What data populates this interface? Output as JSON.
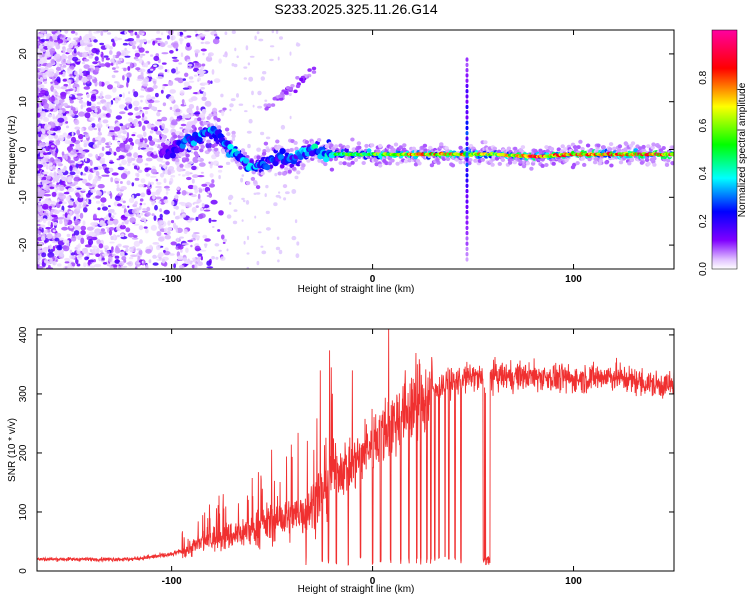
{
  "title": "S233.2025.325.11.26.G14",
  "chart_data": [
    {
      "type": "heatmap",
      "title": "S233.2025.325.11.26.G14",
      "xlabel": "Height of straight line (km)",
      "ylabel": "Frequency (Hz)",
      "xlim": [
        -167,
        150
      ],
      "ylim": [
        -25,
        25
      ],
      "xticks": [
        -100,
        0,
        100
      ],
      "yticks": [
        -20,
        -10,
        0,
        10,
        20
      ],
      "xtick_labels": [
        "-100",
        "0",
        "100"
      ],
      "ytick_labels": [
        "-20",
        "-10",
        "0",
        "10",
        "20"
      ],
      "colorbar": {
        "label": "Normalized spectral amplitude",
        "range": [
          0,
          1
        ],
        "ticks": [
          0.0,
          0.2,
          0.4,
          0.6,
          0.8
        ],
        "tick_labels": [
          "0.0",
          "0.2",
          "0.4",
          "0.6",
          "0.8"
        ],
        "colors": [
          "#ffffff",
          "#8000ff",
          "#0000ff",
          "#00ffff",
          "#00ff00",
          "#ffff00",
          "#ff0000",
          "#ff00a0"
        ]
      },
      "ridge": {
        "frequency_hz": [
          [
            -100,
            0
          ],
          [
            -90,
            2
          ],
          [
            -80,
            4
          ],
          [
            -70,
            0
          ],
          [
            -60,
            -4
          ],
          [
            -50,
            -2
          ],
          [
            -40,
            -2
          ],
          [
            -30,
            0
          ],
          [
            -20,
            -1
          ],
          [
            -10,
            -1
          ],
          [
            0,
            -1
          ],
          [
            20,
            -1
          ],
          [
            40,
            -1
          ],
          [
            60,
            -1
          ],
          [
            80,
            -1.5
          ],
          [
            100,
            -1
          ],
          [
            120,
            -1
          ],
          [
            140,
            -1
          ],
          [
            150,
            -1
          ]
        ],
        "peak_amplitude": [
          [
            -100,
            0.3
          ],
          [
            -80,
            0.5
          ],
          [
            -60,
            0.45
          ],
          [
            -40,
            0.4
          ],
          [
            -20,
            0.55
          ],
          [
            0,
            0.6
          ],
          [
            20,
            0.8
          ],
          [
            40,
            0.85
          ],
          [
            60,
            0.7
          ],
          [
            80,
            0.9
          ],
          [
            100,
            0.85
          ],
          [
            120,
            0.85
          ],
          [
            150,
            0.9
          ]
        ],
        "vertical_feature_km": 47
      }
    },
    {
      "type": "line",
      "xlabel": "Height of straight line (km)",
      "ylabel": "SNR (10 * v/v)",
      "xlim": [
        -167,
        150
      ],
      "ylim": [
        0,
        410
      ],
      "xticks": [
        -100,
        0,
        100
      ],
      "yticks": [
        0,
        100,
        200,
        300,
        400
      ],
      "xtick_labels": [
        "-100",
        "0",
        "100"
      ],
      "ytick_labels": [
        "0",
        "100",
        "200",
        "300",
        "400"
      ],
      "line_color": "#f03030",
      "series": [
        {
          "name": "SNR",
          "trend": [
            [
              -167,
              20
            ],
            [
              -120,
              20
            ],
            [
              -100,
              28
            ],
            [
              -90,
              40
            ],
            [
              -80,
              55
            ],
            [
              -70,
              60
            ],
            [
              -60,
              70
            ],
            [
              -50,
              85
            ],
            [
              -40,
              90
            ],
            [
              -30,
              110
            ],
            [
              -20,
              170
            ],
            [
              -10,
              180
            ],
            [
              0,
              220
            ],
            [
              10,
              250
            ],
            [
              20,
              280
            ],
            [
              30,
              310
            ],
            [
              40,
              320
            ],
            [
              50,
              330
            ],
            [
              55,
              325
            ],
            [
              60,
              330
            ],
            [
              80,
              330
            ],
            [
              100,
              325
            ],
            [
              120,
              330
            ],
            [
              140,
              315
            ],
            [
              150,
              315
            ]
          ],
          "spikes": [
            [
              -26,
              340
            ],
            [
              -10,
              340
            ],
            [
              8,
              410
            ]
          ],
          "dropouts_km": [
            -33,
            -25,
            -22,
            -18,
            -12,
            -6,
            0,
            4,
            9,
            14,
            18,
            22,
            24,
            27,
            29,
            31,
            33,
            36,
            38,
            41,
            44,
            56,
            57,
            58
          ]
        }
      ]
    }
  ]
}
